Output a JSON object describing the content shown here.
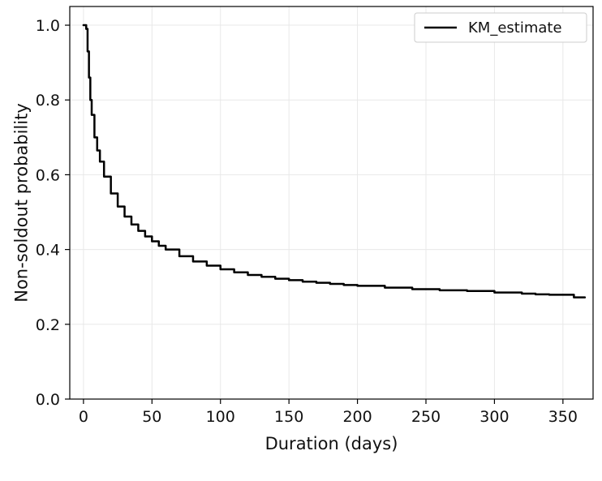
{
  "chart_data": {
    "type": "line",
    "title": "",
    "xlabel": "Duration (days)",
    "ylabel": "Non-soldout probability",
    "xlim": [
      -10,
      372
    ],
    "ylim": [
      0,
      1.05
    ],
    "xticks": [
      0,
      50,
      100,
      150,
      200,
      250,
      300,
      350
    ],
    "xtick_labels": [
      "0",
      "50",
      "100",
      "150",
      "200",
      "250",
      "300",
      "350"
    ],
    "yticks": [
      0,
      0.2,
      0.4,
      0.6,
      0.8,
      1.0
    ],
    "ytick_labels": [
      "0.0",
      "0.2",
      "0.4",
      "0.6",
      "0.8",
      "1.0"
    ],
    "grid": true,
    "legend_position": "top-right",
    "series": [
      {
        "name": "KM_estimate",
        "color": "#000000",
        "step": true,
        "x": [
          0,
          1,
          2,
          3,
          4,
          5,
          6,
          8,
          10,
          12,
          15,
          20,
          25,
          30,
          35,
          40,
          45,
          50,
          55,
          60,
          70,
          80,
          90,
          100,
          110,
          120,
          130,
          140,
          150,
          160,
          170,
          180,
          190,
          200,
          220,
          240,
          260,
          280,
          300,
          320,
          330,
          340,
          350,
          356,
          358,
          360,
          366
        ],
        "y": [
          1.0,
          1.0,
          0.99,
          0.93,
          0.86,
          0.8,
          0.76,
          0.7,
          0.665,
          0.635,
          0.595,
          0.55,
          0.515,
          0.488,
          0.467,
          0.45,
          0.435,
          0.422,
          0.41,
          0.4,
          0.382,
          0.368,
          0.357,
          0.347,
          0.339,
          0.332,
          0.327,
          0.322,
          0.318,
          0.314,
          0.311,
          0.308,
          0.305,
          0.303,
          0.298,
          0.294,
          0.291,
          0.289,
          0.285,
          0.282,
          0.28,
          0.279,
          0.279,
          0.279,
          0.272,
          0.272,
          0.272
        ]
      }
    ]
  }
}
